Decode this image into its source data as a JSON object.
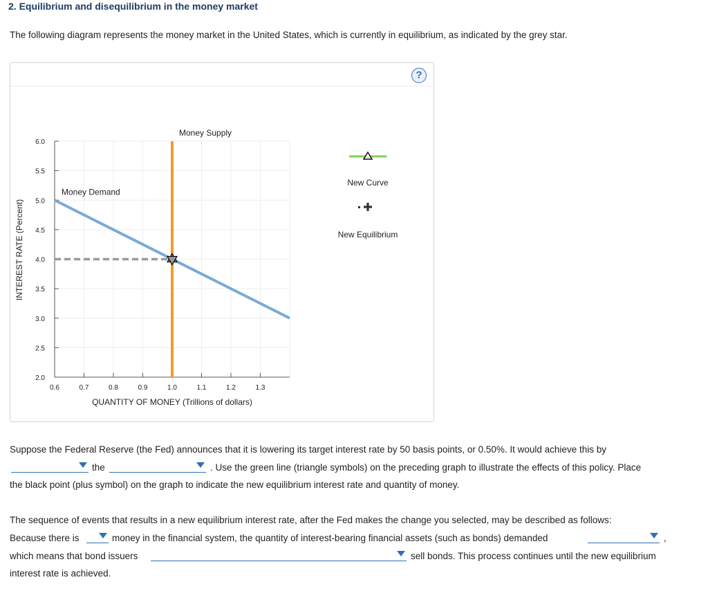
{
  "title": "2. Equilibrium and disequilibrium in the money market",
  "intro": "The following diagram represents the money market in the United States, which is currently in equilibrium, as indicated by the grey star.",
  "help_label": "?",
  "chart_data": {
    "type": "line",
    "xlabel": "QUANTITY OF MONEY (Trillions of dollars)",
    "ylabel": "INTEREST RATE (Percent)",
    "xlim": [
      0.6,
      1.4
    ],
    "ylim": [
      2.0,
      6.0
    ],
    "x_ticks": [
      "0.6",
      "0.7",
      "0.8",
      "0.9",
      "1.0",
      "1.1",
      "1.2",
      "1.3"
    ],
    "y_ticks": [
      "2.0",
      "2.5",
      "3.0",
      "3.5",
      "4.0",
      "4.5",
      "5.0",
      "5.5",
      "6.0"
    ],
    "grid": true,
    "series": [
      {
        "name": "Money Demand",
        "color": "#7aa9d6",
        "points": [
          [
            0.6,
            5.0
          ],
          [
            1.4,
            3.0
          ]
        ]
      },
      {
        "name": "Money Supply",
        "color": "#f39a2a",
        "points": [
          [
            1.0,
            2.0
          ],
          [
            1.0,
            6.0
          ]
        ]
      }
    ],
    "equilibrium": {
      "x": 1.0,
      "y": 4.0,
      "marker": "star",
      "color": "#9a9a9a"
    },
    "equilibrium_guide": {
      "from": [
        0.6,
        4.0
      ],
      "to": [
        1.0,
        4.0
      ],
      "style": "dashed",
      "color": "#9a9a9a"
    }
  },
  "tools": {
    "new_curve_label": "New Curve",
    "new_curve_color": "#7fcf57",
    "new_equilibrium_label": "New Equilibrium"
  },
  "question1": {
    "line1_text": "Suppose the Federal Reserve (the Fed) announces that it is lowering its target interest rate by 50 basis points, or 0.50%. It would achieve this by",
    "the_word": "the",
    "after_dropdown_text": ". Use the green line (triangle symbols) on the preceding graph to illustrate the effects of this policy. Place",
    "line3_text": "the black point (plus symbol) on the graph to indicate the new equilibrium interest rate and quantity of money.",
    "dropdown_action": "",
    "dropdown_object": ""
  },
  "question2": {
    "line1_text": "The sequence of events that results in a new equilibrium interest rate, after the Fed makes the change you selected, may be described as follows:",
    "because_text": "Because there is",
    "money_text": "money in the financial system, the quantity of interest-bearing financial assets (such as bonds) demanded",
    "comma": ",",
    "which_means_text": "which means that bond issuers",
    "sell_text": "sell bonds. This process continues until the new equilibrium",
    "final_text": "interest rate is achieved.",
    "dropdown_money": "",
    "dropdown_demanded": "",
    "dropdown_issuers": ""
  }
}
